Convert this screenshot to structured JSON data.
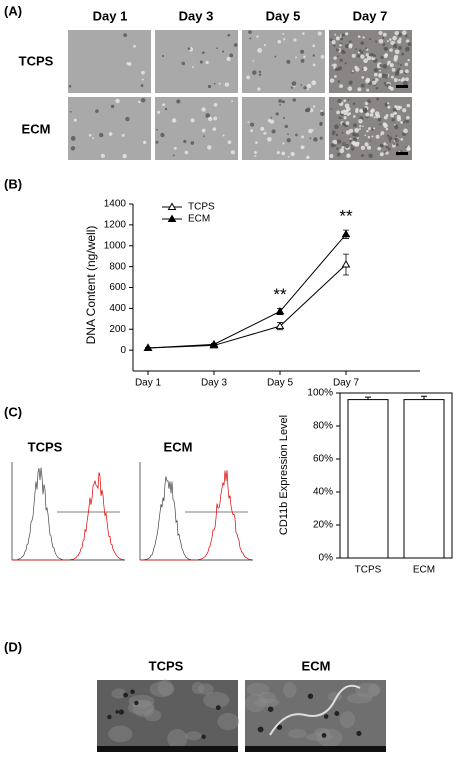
{
  "panels": {
    "a": {
      "label": "(A)",
      "columns": [
        "Day 1",
        "Day 3",
        "Day 5",
        "Day 7"
      ],
      "rows": [
        "TCPS",
        "ECM"
      ]
    },
    "b": {
      "label": "(B)"
    },
    "c": {
      "label": "(C)",
      "histogram_titles": [
        "TCPS",
        "ECM"
      ]
    },
    "d": {
      "label": "(D)",
      "titles": [
        "TCPS",
        "ECM"
      ]
    }
  },
  "chart_data": [
    {
      "type": "line",
      "y_label": "DNA Content (ng/well)",
      "categories": [
        "Day 1",
        "Day 3",
        "Day 5",
        "Day 7"
      ],
      "series": [
        {
          "name": "TCPS",
          "color": "#000000",
          "filled": false,
          "values": [
            20,
            45,
            230,
            820
          ],
          "errors": [
            5,
            10,
            35,
            100
          ]
        },
        {
          "name": "ECM",
          "color": "#000000",
          "filled": true,
          "values": [
            20,
            55,
            370,
            1110
          ],
          "errors": [
            5,
            8,
            30,
            40
          ]
        }
      ],
      "annotations": [
        "**",
        "**"
      ],
      "ylim": [
        -200,
        1400
      ],
      "yticks": [
        0,
        200,
        400,
        600,
        800,
        1000,
        1200,
        1400
      ],
      "legend": "upper-left"
    },
    {
      "type": "bar",
      "y_label": "CD11b Expression Level",
      "categories": [
        "TCPS",
        "ECM"
      ],
      "values": [
        96,
        96
      ],
      "errors": [
        1.5,
        2
      ],
      "color": "#ffffff",
      "ylim": [
        0,
        100
      ],
      "yticks": [
        {
          "value": 0,
          "label": "0%"
        },
        {
          "value": 20,
          "label": "20%"
        },
        {
          "value": 40,
          "label": "40%"
        },
        {
          "value": 60,
          "label": "60%"
        },
        {
          "value": 80,
          "label": "80%"
        },
        {
          "value": 100,
          "label": "100%"
        }
      ]
    }
  ]
}
